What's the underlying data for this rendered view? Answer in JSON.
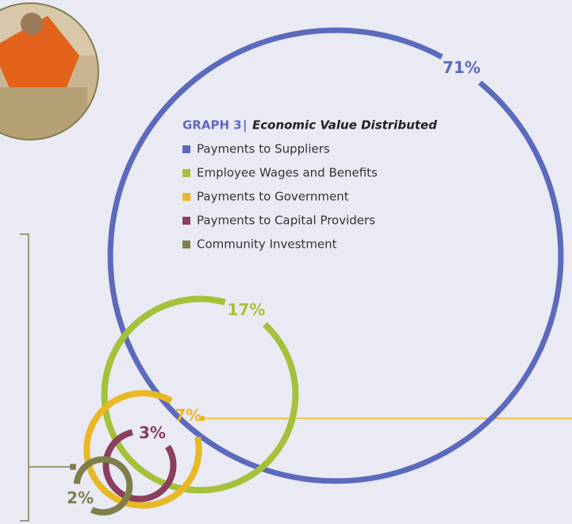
{
  "chart_data": {
    "type": "ring",
    "title": "GRAPH 3",
    "subtitle": "Economic Value Distributed",
    "series": [
      {
        "name": "Payments to Suppliers",
        "color": "#5b6abd"
      },
      {
        "name": "Employee Wages and Benefits",
        "color": "#a4c139"
      },
      {
        "name": "Payments to Government",
        "color": "#e9b824"
      },
      {
        "name": "Payments to Capital Providers",
        "color": "#8a3f5c"
      },
      {
        "name": "Community Investment",
        "color": "#7f7f4b"
      }
    ],
    "values": [
      71,
      17,
      7,
      3,
      2
    ],
    "value_labels": [
      "71%",
      "17%",
      "7%",
      "3%",
      "2%"
    ]
  }
}
